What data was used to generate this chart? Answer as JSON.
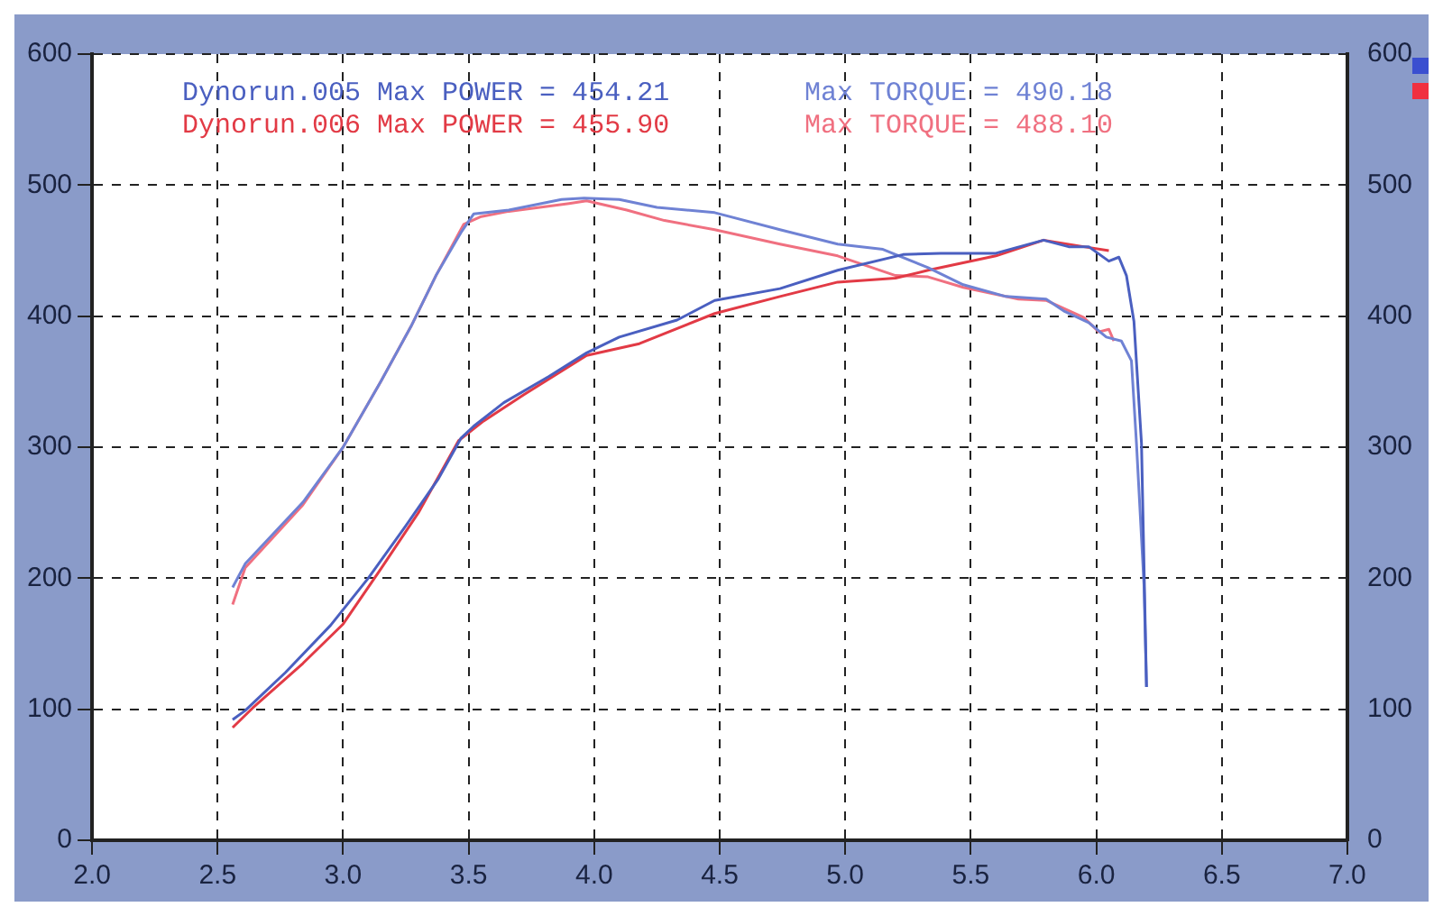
{
  "chart_data": {
    "type": "line",
    "xlim": [
      2,
      7
    ],
    "xticks": [
      {
        "value": 2,
        "label": "2.0"
      },
      {
        "value": 2.5,
        "label": "2.5"
      },
      {
        "value": 3,
        "label": "3.0"
      },
      {
        "value": 3.5,
        "label": "3.5"
      },
      {
        "value": 4,
        "label": "4.0"
      },
      {
        "value": 4.5,
        "label": "4.5"
      },
      {
        "value": 5,
        "label": "5.0"
      },
      {
        "value": 5.5,
        "label": "5.5"
      },
      {
        "value": 6,
        "label": "6.0"
      },
      {
        "value": 6.5,
        "label": "6.5"
      },
      {
        "value": 7,
        "label": "7.0"
      }
    ],
    "ylim": [
      0,
      600
    ],
    "yticks": [
      0,
      100,
      200,
      300,
      400,
      500,
      600
    ],
    "y2lim": [
      0,
      600
    ],
    "y2ticks": [
      0,
      100,
      200,
      300,
      400,
      500,
      600
    ],
    "grid": true,
    "legend": "top left",
    "marker": "none",
    "line_style": "solid",
    "series": [
      {
        "name": "Dynorun.005 Max POWER = 454.21",
        "color": "#4a5fc0",
        "x": [
          2.56,
          2.61,
          2.77,
          2.95,
          3.1,
          3.25,
          3.38,
          3.47,
          3.52,
          3.64,
          3.82,
          3.97,
          4.1,
          4.33,
          4.48,
          4.74,
          4.97,
          5.23,
          5.38,
          5.6,
          5.79,
          5.89,
          5.97,
          6.05,
          6.09,
          6.12,
          6.15,
          6.18,
          6.2
        ],
        "values": [
          92,
          99,
          128,
          164,
          200,
          240,
          276,
          307,
          316,
          334,
          354,
          372,
          384,
          397,
          412,
          421,
          435,
          447,
          448,
          448,
          458,
          453,
          453,
          442,
          445,
          431,
          396,
          303,
          117
        ]
      },
      {
        "name": "Max TORQUE = 490.18",
        "color": "#6f82d4",
        "x": [
          2.56,
          2.61,
          2.84,
          3.0,
          3.15,
          3.27,
          3.37,
          3.47,
          3.52,
          3.66,
          3.87,
          3.96,
          4.1,
          4.25,
          4.48,
          4.74,
          4.97,
          5.15,
          5.33,
          5.47,
          5.64,
          5.8,
          5.87,
          5.97,
          6.04,
          6.1,
          6.14,
          6.16,
          6.19,
          6.2
        ],
        "values": [
          193,
          211,
          258,
          300,
          350,
          392,
          431,
          464,
          478,
          481,
          489,
          490,
          489,
          483,
          479,
          466,
          455,
          451,
          437,
          424,
          415,
          413,
          404,
          395,
          384,
          381,
          366,
          303,
          195,
          117
        ]
      },
      {
        "name": "Dynorun.006 Max POWER = 455.90",
        "color": "#e23a45",
        "x": [
          2.56,
          2.64,
          2.84,
          3.0,
          3.15,
          3.3,
          3.46,
          3.56,
          3.72,
          3.97,
          4.18,
          4.48,
          4.74,
          4.97,
          5.2,
          5.33,
          5.6,
          5.79,
          5.95,
          6.05
        ],
        "values": [
          86,
          101,
          135,
          165,
          207,
          250,
          305,
          320,
          340,
          370,
          379,
          402,
          415,
          426,
          429,
          435,
          446,
          458,
          453,
          450
        ]
      },
      {
        "name": "Max TORQUE = 488.10",
        "color": "#f07080",
        "x": [
          2.56,
          2.61,
          2.84,
          3.0,
          3.15,
          3.27,
          3.37,
          3.48,
          3.55,
          3.66,
          3.9,
          3.97,
          4.13,
          4.28,
          4.48,
          4.74,
          4.97,
          5.2,
          5.33,
          5.47,
          5.69,
          5.8,
          5.95,
          6.01,
          6.05,
          6.07
        ],
        "values": [
          180,
          208,
          256,
          300,
          350,
          392,
          431,
          470,
          476,
          480,
          486,
          488,
          481,
          473,
          466,
          455,
          446,
          431,
          430,
          422,
          413,
          412,
          399,
          388,
          390,
          381
        ]
      }
    ]
  }
}
